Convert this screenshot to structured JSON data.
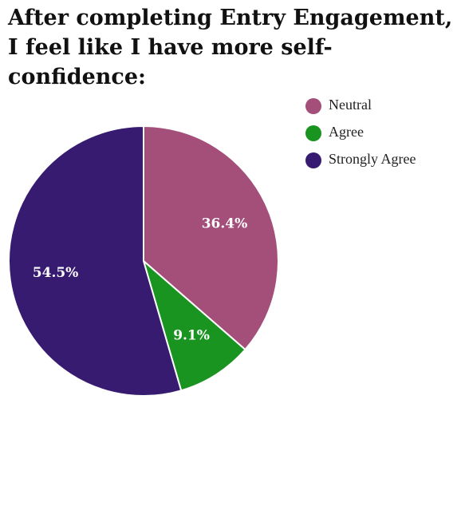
{
  "chart_data": {
    "type": "pie",
    "title_lines": [
      "After completing Entry Engagement,",
      "I feel like I have more self-",
      "confidence:"
    ],
    "slices": [
      {
        "name": "Neutral",
        "value": 36.4,
        "label": "36.4%",
        "color": "#a34f7a"
      },
      {
        "name": "Agree",
        "value": 9.1,
        "label": "9.1%",
        "color": "#1a9420"
      },
      {
        "name": "Strongly Agree",
        "value": 54.5,
        "label": "54.5%",
        "color": "#371b70"
      }
    ],
    "legend_position": "top-right"
  }
}
